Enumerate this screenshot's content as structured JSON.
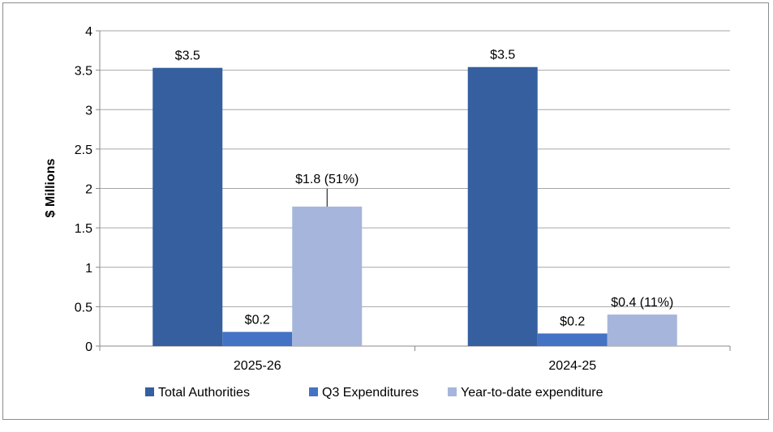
{
  "chart_data": {
    "type": "bar",
    "title": "",
    "xlabel": "",
    "ylabel": "$ Millions",
    "ylim": [
      0,
      4
    ],
    "yticks": [
      "0",
      "0.5",
      "1",
      "1.5",
      "2",
      "2.5",
      "3",
      "3.5",
      "4"
    ],
    "grid": true,
    "legend_position": "bottom",
    "categories": [
      "2025-26",
      "2024-25"
    ],
    "series": [
      {
        "name": "Total Authorities",
        "color": "#355F9F",
        "values": [
          3.53,
          3.54
        ],
        "labels": [
          "$3.5",
          "$3.5"
        ]
      },
      {
        "name": "Q3 Expenditures",
        "color": "#4472C4",
        "values": [
          0.18,
          0.16
        ],
        "labels": [
          "$0.2",
          "$0.2"
        ]
      },
      {
        "name": "Year-to-date expenditure",
        "color": "#A6B5DB",
        "values": [
          1.77,
          0.4
        ],
        "labels": [
          "$1.8 (51%)",
          "$0.4 (11%)"
        ]
      }
    ]
  }
}
